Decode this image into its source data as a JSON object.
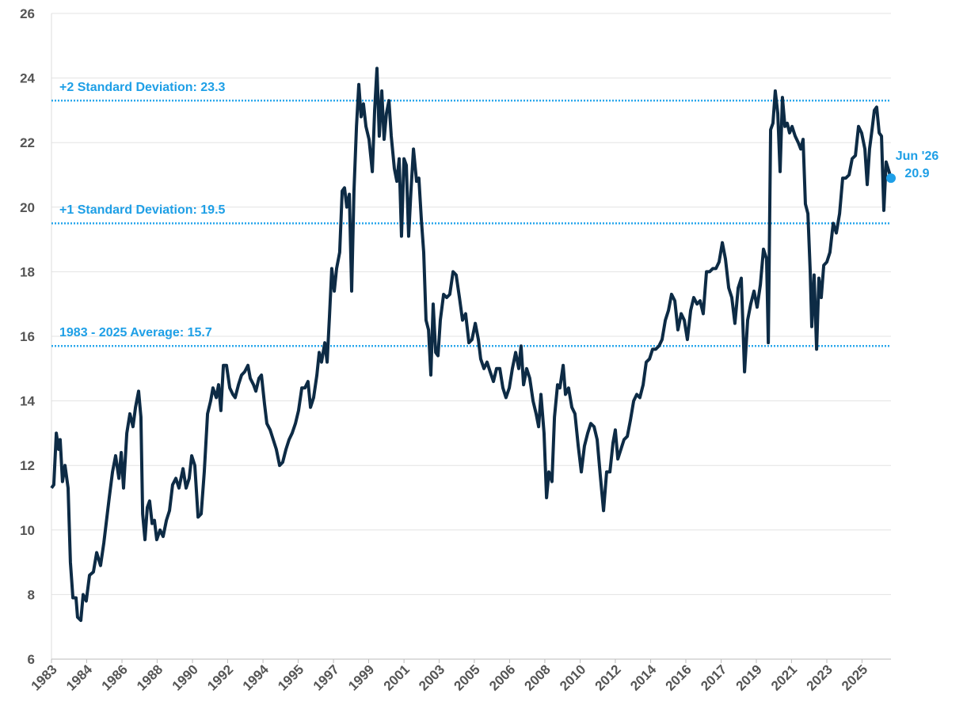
{
  "chart_data": {
    "type": "line",
    "x": [
      1983.0,
      1983.12,
      1983.25,
      1983.37,
      1983.45,
      1983.57,
      1983.7,
      1983.86,
      1983.98,
      1984.11,
      1984.27,
      1984.35,
      1984.52,
      1984.64,
      1984.8,
      1984.97,
      1985.17,
      1985.34,
      1985.54,
      1985.71,
      1985.87,
      1985.99,
      1986.16,
      1986.32,
      1986.49,
      1986.61,
      1986.73,
      1986.9,
      1987.06,
      1987.22,
      1987.35,
      1987.51,
      1987.63,
      1987.72,
      1987.84,
      1987.96,
      1988.08,
      1988.21,
      1988.33,
      1988.45,
      1988.62,
      1988.78,
      1988.95,
      1989.11,
      1989.27,
      1989.44,
      1989.6,
      1989.81,
      1989.97,
      1990.13,
      1990.26,
      1990.42,
      1990.59,
      1990.75,
      1990.91,
      1991.08,
      1991.24,
      1991.36,
      1991.53,
      1991.65,
      1991.77,
      1991.9,
      1992.06,
      1992.23,
      1992.39,
      1992.51,
      1992.68,
      1992.84,
      1993.0,
      1993.17,
      1993.29,
      1993.46,
      1993.58,
      1993.74,
      1993.87,
      1994.03,
      1994.15,
      1994.32,
      1994.48,
      1994.64,
      1994.81,
      1994.97,
      1995.14,
      1995.3,
      1995.46,
      1995.63,
      1995.79,
      1995.96,
      1996.12,
      1996.28,
      1996.41,
      1996.57,
      1996.74,
      1996.86,
      1996.98,
      1997.15,
      1997.27,
      1997.39,
      1997.51,
      1997.64,
      1997.76,
      1997.92,
      1998.05,
      1998.17,
      1998.29,
      1998.42,
      1998.54,
      1998.66,
      1998.79,
      1998.91,
      1999.03,
      1999.15,
      1999.28,
      1999.44,
      1999.61,
      1999.73,
      1999.85,
      1999.97,
      2000.1,
      2000.22,
      2000.34,
      2000.47,
      2000.59,
      2000.75,
      2000.88,
      2001.0,
      2001.12,
      2001.25,
      2001.37,
      2001.49,
      2001.61,
      2001.74,
      2001.9,
      2002.02,
      2002.15,
      2002.27,
      2002.39,
      2002.52,
      2002.64,
      2002.76,
      2002.89,
      2003.01,
      2003.13,
      2003.3,
      2003.46,
      2003.62,
      2003.79,
      2003.95,
      2004.12,
      2004.28,
      2004.44,
      2004.61,
      2004.77,
      2004.94,
      2005.1,
      2005.22,
      2005.39,
      2005.55,
      2005.71,
      2005.88,
      2006.04,
      2006.21,
      2006.37,
      2006.53,
      2006.7,
      2006.86,
      2007.03,
      2007.19,
      2007.31,
      2007.44,
      2007.6,
      2007.76,
      2007.93,
      2008.09,
      2008.22,
      2008.34,
      2008.5,
      2008.63,
      2008.75,
      2008.91,
      2009.04,
      2009.2,
      2009.32,
      2009.49,
      2009.61,
      2009.77,
      2009.94,
      2010.1,
      2010.27,
      2010.43,
      2010.59,
      2010.76,
      2010.92,
      2011.09,
      2011.25,
      2011.41,
      2011.58,
      2011.74,
      2011.91,
      2012.07,
      2012.19,
      2012.32,
      2012.48,
      2012.64,
      2012.81,
      2012.97,
      2013.14,
      2013.3,
      2013.46,
      2013.63,
      2013.79,
      2013.96,
      2014.12,
      2014.28,
      2014.45,
      2014.61,
      2014.78,
      2014.94,
      2015.1,
      2015.27,
      2015.43,
      2015.6,
      2015.76,
      2015.92,
      2016.09,
      2016.25,
      2016.42,
      2016.58,
      2016.74,
      2016.91,
      2017.07,
      2017.24,
      2017.4,
      2017.56,
      2017.73,
      2017.89,
      2018.06,
      2018.22,
      2018.38,
      2018.55,
      2018.71,
      2018.88,
      2019.04,
      2019.2,
      2019.37,
      2019.53,
      2019.7,
      2019.86,
      2020.02,
      2020.11,
      2020.23,
      2020.35,
      2020.47,
      2020.6,
      2020.72,
      2020.84,
      2020.97,
      2021.09,
      2021.21,
      2021.34,
      2021.5,
      2021.66,
      2021.79,
      2021.91,
      2022.03,
      2022.16,
      2022.28,
      2022.36,
      2022.48,
      2022.61,
      2022.73,
      2022.85,
      2022.98,
      2023.14,
      2023.3,
      2023.47,
      2023.63,
      2023.8,
      2023.96,
      2024.12,
      2024.29,
      2024.45,
      2024.62,
      2024.78,
      2024.94,
      2025.11,
      2025.23,
      2025.35,
      2025.48,
      2025.6,
      2025.72,
      2025.85,
      2025.97,
      2026.09,
      2026.21,
      2026.46
    ],
    "series": [
      {
        "color": "#0d2b45",
        "values": [
          11.3,
          11.4,
          13.0,
          12.5,
          12.8,
          11.5,
          12.0,
          11.3,
          9.0,
          7.9,
          7.9,
          7.3,
          7.2,
          8.0,
          7.8,
          8.6,
          8.7,
          9.3,
          8.9,
          9.6,
          10.4,
          11.0,
          11.8,
          12.3,
          11.6,
          12.4,
          11.3,
          13.0,
          13.6,
          13.2,
          13.8,
          14.3,
          13.5,
          10.5,
          9.7,
          10.7,
          10.9,
          10.2,
          10.3,
          9.7,
          10.0,
          9.8,
          10.3,
          10.6,
          11.4,
          11.6,
          11.3,
          11.9,
          11.3,
          11.6,
          12.3,
          12.0,
          10.4,
          10.5,
          11.8,
          13.6,
          14.0,
          14.4,
          14.1,
          14.5,
          13.7,
          15.1,
          15.1,
          14.4,
          14.2,
          14.1,
          14.5,
          14.8,
          14.9,
          15.1,
          14.7,
          14.5,
          14.3,
          14.7,
          14.8,
          13.9,
          13.3,
          13.1,
          12.8,
          12.5,
          12.0,
          12.1,
          12.5,
          12.8,
          13.0,
          13.3,
          13.7,
          14.4,
          14.4,
          14.6,
          13.8,
          14.1,
          14.8,
          15.5,
          15.2,
          15.8,
          15.2,
          16.6,
          18.1,
          17.4,
          18.1,
          18.6,
          20.5,
          20.6,
          20.0,
          20.4,
          17.4,
          20.5,
          22.5,
          23.8,
          22.8,
          23.2,
          22.5,
          22.1,
          21.1,
          23.0,
          24.3,
          22.2,
          23.6,
          22.1,
          22.9,
          23.3,
          22.2,
          21.2,
          20.8,
          21.5,
          19.1,
          21.5,
          21.3,
          19.1,
          20.5,
          21.8,
          20.8,
          20.9,
          19.6,
          18.6,
          16.5,
          16.2,
          14.8,
          17.0,
          15.5,
          15.4,
          16.5,
          17.3,
          17.2,
          17.3,
          18.0,
          17.9,
          17.2,
          16.5,
          16.7,
          15.8,
          15.9,
          16.4,
          15.9,
          15.3,
          15.0,
          15.2,
          14.9,
          14.6,
          15.0,
          15.0,
          14.4,
          14.1,
          14.4,
          15.0,
          15.5,
          15.0,
          15.7,
          14.5,
          15.0,
          14.7,
          14.0,
          13.6,
          13.2,
          14.2,
          13.0,
          11.0,
          11.8,
          11.5,
          13.5,
          14.5,
          14.4,
          15.1,
          14.2,
          14.4,
          13.8,
          13.6,
          12.6,
          11.8,
          12.6,
          13.0,
          13.3,
          13.2,
          12.8,
          11.7,
          10.6,
          11.8,
          11.8,
          12.7,
          13.1,
          12.2,
          12.5,
          12.8,
          12.9,
          13.4,
          14.0,
          14.2,
          14.1,
          14.5,
          15.2,
          15.3,
          15.6,
          15.6,
          15.7,
          15.9,
          16.5,
          16.8,
          17.3,
          17.1,
          16.2,
          16.7,
          16.5,
          15.9,
          16.8,
          17.2,
          17.0,
          17.1,
          16.7,
          18.0,
          18.0,
          18.1,
          18.1,
          18.3,
          18.9,
          18.4,
          17.5,
          17.2,
          16.4,
          17.5,
          17.8,
          14.9,
          16.5,
          17.0,
          17.4,
          16.9,
          17.6,
          18.7,
          18.4,
          15.8,
          22.4,
          22.6,
          23.6,
          22.9,
          21.1,
          23.4,
          22.5,
          22.6,
          22.3,
          22.5,
          22.2,
          22.0,
          21.8,
          22.1,
          20.1,
          19.8,
          18.0,
          16.3,
          17.9,
          15.6,
          17.8,
          17.2,
          18.2,
          18.3,
          18.6,
          19.5,
          19.2,
          19.8,
          20.9,
          20.9,
          21.0,
          21.5,
          21.6,
          22.5,
          22.3,
          21.8,
          20.7,
          21.8,
          22.4,
          23.0,
          23.1,
          22.3,
          22.2,
          19.9,
          21.4,
          20.9
        ]
      }
    ],
    "xlim": [
      1983,
      2026.46
    ],
    "xticks": [
      1983,
      {
        "value": 1984.82,
        "label": "1984"
      },
      {
        "value": 1986.65,
        "label": "1986"
      },
      {
        "value": 1988.47,
        "label": "1988"
      },
      {
        "value": 1990.3,
        "label": "1990"
      },
      {
        "value": 1992.12,
        "label": "1992"
      },
      {
        "value": 1993.95,
        "label": "1994"
      },
      {
        "value": 1995.77,
        "label": "1995"
      },
      {
        "value": 1997.6,
        "label": "1997"
      },
      {
        "value": 1999.42,
        "label": "1999"
      },
      {
        "value": 2001.25,
        "label": "2001"
      },
      {
        "value": 2003.07,
        "label": "2003"
      },
      {
        "value": 2004.89,
        "label": "2005"
      },
      {
        "value": 2006.72,
        "label": "2006"
      },
      {
        "value": 2008.54,
        "label": "2008"
      },
      {
        "value": 2010.37,
        "label": "2010"
      },
      {
        "value": 2012.19,
        "label": "2012"
      },
      {
        "value": 2014.02,
        "label": "2014"
      },
      {
        "value": 2015.84,
        "label": "2016"
      },
      {
        "value": 2017.67,
        "label": "2017"
      },
      {
        "value": 2019.49,
        "label": "2019"
      },
      {
        "value": 2021.31,
        "label": "2021"
      },
      {
        "value": 2023.14,
        "label": "2023"
      },
      {
        "value": 2024.96,
        "label": "2025"
      }
    ],
    "ylim": [
      6,
      26
    ],
    "yticks": [
      6,
      8,
      10,
      12,
      14,
      16,
      18,
      20,
      22,
      24,
      26
    ],
    "grid": true,
    "reference_lines": [
      {
        "label": "+2 Standard Deviation: 23.3",
        "value": 23.3,
        "color": "#2aa7ec"
      },
      {
        "label": "+1 Standard Deviation: 19.5",
        "value": 19.5,
        "color": "#2aa7ec"
      },
      {
        "label": "1983 - 2025 Average: 15.7",
        "value": 15.7,
        "color": "#2aa7ec"
      }
    ],
    "last_point": {
      "label": "Jun '26",
      "color": "#1e9fe8"
    }
  }
}
